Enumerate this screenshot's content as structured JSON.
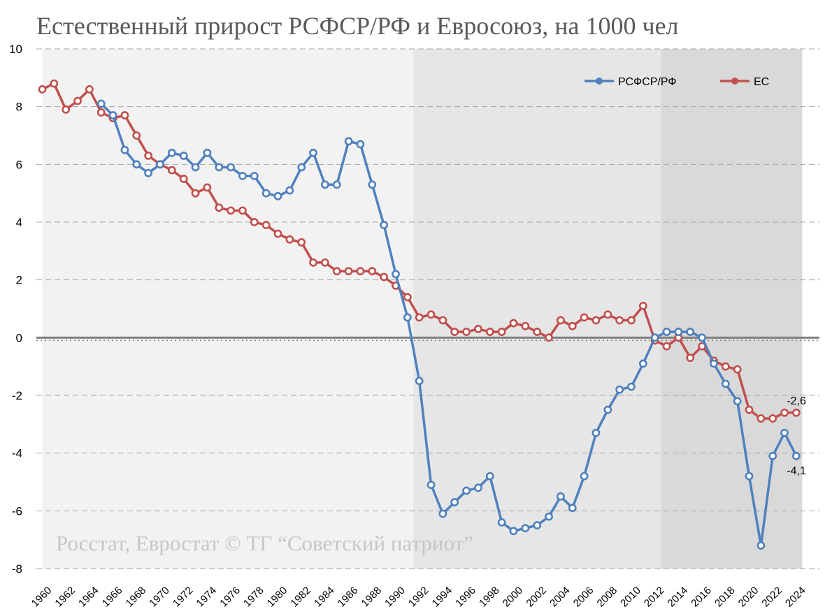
{
  "title": "Естественный прирост РСФСР/РФ и Евросоюз, на 1000 чел",
  "source_note": "Росстат, Евростат © ТГ “Советский патриот”",
  "colors": {
    "rf": "#4f81bd",
    "eu": "#c0504d",
    "band_1": "#f2f2f2",
    "band_2": "#e6e6e6",
    "band_3": "#d9d9d9",
    "gridline": "#a6a6a6",
    "zero_line": "#7f7f7f"
  },
  "chart_data": {
    "type": "line",
    "title": "Естественный прирост РСФСР/РФ и Евросоюз, на 1000 чел",
    "xlabel": "",
    "ylabel": "",
    "ylim": [
      -8,
      10
    ],
    "yticks": [
      10,
      8,
      6,
      4,
      2,
      0,
      -2,
      -4,
      -6,
      -8
    ],
    "xlim": [
      1960,
      2024
    ],
    "xtick_labels": [
      "1960",
      "1962",
      "1964",
      "1966",
      "1968",
      "1970",
      "1972",
      "1974",
      "1976",
      "1978",
      "1980",
      "1982",
      "1984",
      "1986",
      "1988",
      "1990",
      "1992",
      "1994",
      "1996",
      "1998",
      "2000",
      "2002",
      "2004",
      "2006",
      "2008",
      "2010",
      "2012",
      "2014",
      "2016",
      "2018",
      "2020",
      "2022",
      "2024"
    ],
    "grid": "horizontal dashed",
    "legend_position": "top-right",
    "background_bands": [
      {
        "from": 1960,
        "to": 1991.5
      },
      {
        "from": 1991.5,
        "to": 2012.5
      },
      {
        "from": 2012.5,
        "to": 2024.5
      }
    ],
    "series": [
      {
        "name": "РСФСР/РФ",
        "color": "#4f81bd",
        "x": [
          1965,
          1966,
          1967,
          1968,
          1969,
          1970,
          1971,
          1972,
          1973,
          1974,
          1975,
          1976,
          1977,
          1978,
          1979,
          1980,
          1981,
          1982,
          1983,
          1984,
          1985,
          1986,
          1987,
          1988,
          1989,
          1990,
          1991,
          1992,
          1993,
          1994,
          1995,
          1996,
          1997,
          1998,
          1999,
          2000,
          2001,
          2002,
          2003,
          2004,
          2005,
          2006,
          2007,
          2008,
          2009,
          2010,
          2011,
          2012,
          2013,
          2014,
          2015,
          2016,
          2017,
          2018,
          2019,
          2020,
          2021,
          2022,
          2023,
          2024
        ],
        "values": [
          8.1,
          7.7,
          6.5,
          6.0,
          5.7,
          6.0,
          6.4,
          6.3,
          5.9,
          6.4,
          5.9,
          5.9,
          5.6,
          5.6,
          5.0,
          4.9,
          5.1,
          5.9,
          6.4,
          5.3,
          5.3,
          6.8,
          6.7,
          5.3,
          3.9,
          2.2,
          0.7,
          -1.5,
          -5.1,
          -6.1,
          -5.7,
          -5.3,
          -5.2,
          -4.8,
          -6.4,
          -6.7,
          -6.6,
          -6.5,
          -6.2,
          -5.5,
          -5.9,
          -4.8,
          -3.3,
          -2.5,
          -1.8,
          -1.7,
          -0.9,
          0.0,
          0.2,
          0.2,
          0.2,
          0.0,
          -0.9,
          -1.6,
          -2.2,
          -4.8,
          -7.2,
          -4.1,
          -3.3,
          -4.1
        ]
      },
      {
        "name": "ЕС",
        "color": "#c0504d",
        "x": [
          1960,
          1961,
          1962,
          1963,
          1964,
          1965,
          1966,
          1967,
          1968,
          1969,
          1970,
          1971,
          1972,
          1973,
          1974,
          1975,
          1976,
          1977,
          1978,
          1979,
          1980,
          1981,
          1982,
          1983,
          1984,
          1985,
          1986,
          1987,
          1988,
          1989,
          1990,
          1991,
          1992,
          1993,
          1994,
          1995,
          1996,
          1997,
          1998,
          1999,
          2000,
          2001,
          2002,
          2003,
          2004,
          2005,
          2006,
          2007,
          2008,
          2009,
          2010,
          2011,
          2012,
          2013,
          2014,
          2015,
          2016,
          2017,
          2018,
          2019,
          2020,
          2021,
          2022,
          2023,
          2024
        ],
        "values": [
          8.6,
          8.8,
          7.9,
          8.2,
          8.6,
          7.8,
          7.6,
          7.7,
          7.0,
          6.3,
          6.0,
          5.8,
          5.5,
          5.0,
          5.2,
          4.5,
          4.4,
          4.4,
          4.0,
          3.9,
          3.6,
          3.4,
          3.3,
          2.6,
          2.6,
          2.3,
          2.3,
          2.3,
          2.3,
          2.1,
          1.8,
          1.4,
          0.7,
          0.8,
          0.6,
          0.2,
          0.2,
          0.3,
          0.2,
          0.2,
          0.5,
          0.4,
          0.2,
          0.0,
          0.6,
          0.4,
          0.7,
          0.6,
          0.8,
          0.6,
          0.6,
          1.1,
          -0.1,
          -0.3,
          0.0,
          -0.7,
          -0.3,
          -0.8,
          -1.0,
          -1.1,
          -2.5,
          -2.8,
          -2.8,
          -2.6,
          -2.6
        ]
      }
    ],
    "annotations": [
      {
        "series": "ЕС",
        "x": 2024,
        "text": "-2,6"
      },
      {
        "series": "РСФСР/РФ",
        "x": 2024,
        "text": "-4,1"
      }
    ]
  }
}
